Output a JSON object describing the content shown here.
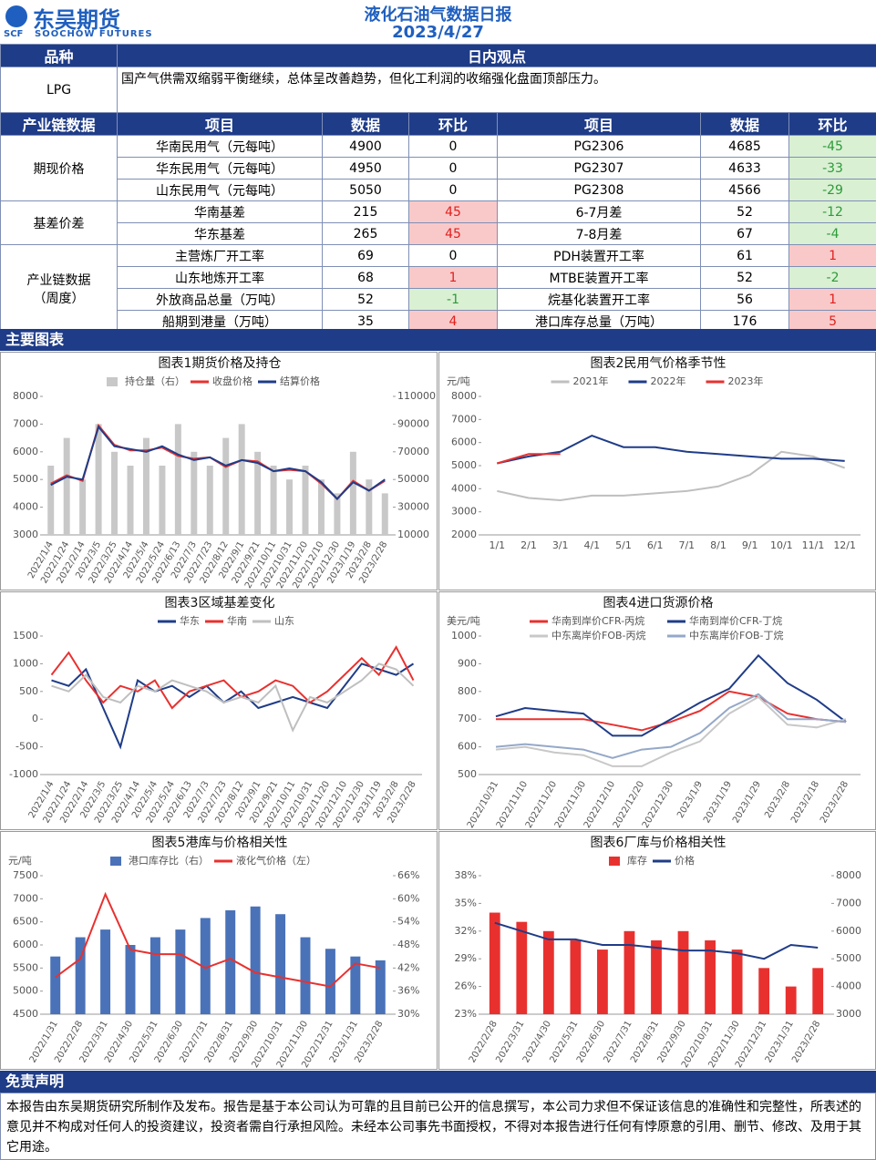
{
  "header": {
    "brand": "东吴期货",
    "brand_en": "SOOCHOW FUTURES",
    "mark": "SCF",
    "title": "液化石油气数据日报",
    "date": "2023/4/27"
  },
  "view": {
    "headers": [
      "品种",
      "日内观点"
    ],
    "product": "LPG",
    "text": "国产气供需双缩弱平衡继续，总体呈改善趋势，但化工利润的收缩强化盘面顶部压力。"
  },
  "table": {
    "headers": [
      "产业链数据",
      "项目",
      "数据",
      "环比",
      "项目",
      "数据",
      "环比"
    ],
    "groups": [
      {
        "name": [
          "期现价格"
        ],
        "rows": [
          [
            "华南民用气（元每吨）",
            4900,
            0,
            "PG2306",
            4685,
            -45
          ],
          [
            "华东民用气（元每吨）",
            4950,
            0,
            "PG2307",
            4633,
            -33
          ],
          [
            "山东民用气（元每吨）",
            5050,
            0,
            "PG2308",
            4566,
            -29
          ]
        ]
      },
      {
        "name": [
          "基差价差"
        ],
        "rows": [
          [
            "华南基差",
            215,
            45,
            "6-7月差",
            52,
            -12
          ],
          [
            "华东基差",
            265,
            45,
            "7-8月差",
            67,
            -4
          ]
        ]
      },
      {
        "name": [
          "产业链数据",
          "（周度）"
        ],
        "rows": [
          [
            "主营炼厂开工率",
            69,
            0,
            "PDH装置开工率",
            61,
            1
          ],
          [
            "山东地炼开工率",
            68,
            1,
            "MTBE装置开工率",
            52,
            -2
          ],
          [
            "外放商品总量（万吨）",
            52,
            -1,
            "烷基化装置开工率",
            56,
            1
          ],
          [
            "船期到港量（万吨）",
            35,
            4,
            "港口库存总量（万吨）",
            176,
            5
          ]
        ]
      }
    ]
  },
  "main_charts_title": "主要图表",
  "chart_data": [
    {
      "type": "combo",
      "title": "图表1期货价格及持仓",
      "categories": [
        "2022/1/4",
        "2022/1/24",
        "2022/2/14",
        "2022/3/5",
        "2022/3/25",
        "2022/4/14",
        "2022/5/4",
        "2022/5/24",
        "2022/6/13",
        "2022/7/3",
        "2022/7/23",
        "2022/8/12",
        "2022/9/1",
        "2022/9/21",
        "2022/10/11",
        "2022/10/31",
        "2022/11/20",
        "2022/12/10",
        "2022/12/30",
        "2023/1/19",
        "2023/2/8",
        "2023/2/28"
      ],
      "series": [
        {
          "name": "持仓量（右）",
          "type": "bar",
          "axis": "y2",
          "color": "#c8c8c8",
          "values": [
            60000,
            80000,
            50000,
            90000,
            70000,
            60000,
            80000,
            60000,
            90000,
            70000,
            60000,
            80000,
            90000,
            70000,
            60000,
            50000,
            60000,
            50000,
            40000,
            70000,
            50000,
            40000
          ]
        },
        {
          "name": "收盘价格",
          "type": "line",
          "color": "#e8312f",
          "values": [
            4850,
            5150,
            4950,
            6950,
            6250,
            6050,
            6050,
            6150,
            5850,
            5750,
            5800,
            5450,
            5700,
            5650,
            5300,
            5350,
            5300,
            4850,
            4300,
            4950,
            4600,
            4950
          ]
        },
        {
          "name": "结算价格",
          "type": "line",
          "color": "#1f3c88",
          "values": [
            4800,
            5100,
            5000,
            6900,
            6200,
            6100,
            6000,
            6200,
            5900,
            5700,
            5800,
            5500,
            5700,
            5600,
            5300,
            5400,
            5300,
            4900,
            4300,
            4900,
            4600,
            5000
          ]
        }
      ],
      "ylim": [
        3000,
        8000
      ],
      "yticks": [
        3000,
        4000,
        5000,
        6000,
        7000,
        8000
      ],
      "y2lim": [
        10000,
        110000
      ],
      "y2ticks": [
        10000,
        30000,
        50000,
        70000,
        90000,
        110000
      ]
    },
    {
      "type": "line",
      "title": "图表2民用气价格季节性",
      "unit": "元/吨",
      "categories": [
        "1/1",
        "2/1",
        "3/1",
        "4/1",
        "5/1",
        "6/1",
        "7/1",
        "8/1",
        "9/1",
        "10/1",
        "11/1",
        "12/1"
      ],
      "series": [
        {
          "name": "2021年",
          "type": "line",
          "color": "#bfbfbf",
          "values": [
            3900,
            3600,
            3500,
            3700,
            3700,
            3800,
            3900,
            4100,
            4600,
            5600,
            5400,
            4900
          ]
        },
        {
          "name": "2022年",
          "type": "line",
          "color": "#1f3c88",
          "values": [
            5100,
            5400,
            5600,
            6300,
            5800,
            5800,
            5600,
            5500,
            5400,
            5300,
            5300,
            5200
          ]
        },
        {
          "name": "2023年",
          "type": "line",
          "color": "#e8312f",
          "values": [
            5100,
            5500,
            5500,
            null,
            null,
            null,
            null,
            null,
            null,
            null,
            null,
            null
          ]
        }
      ],
      "ylim": [
        2000,
        8000
      ],
      "yticks": [
        2000,
        3000,
        4000,
        5000,
        6000,
        7000,
        8000
      ]
    },
    {
      "type": "line",
      "title": "图表3区域基差变化",
      "categories": [
        "2022/1/4",
        "2022/1/24",
        "2022/2/14",
        "2022/3/5",
        "2022/3/25",
        "2022/4/14",
        "2022/5/4",
        "2022/5/24",
        "2022/6/13",
        "2022/7/3",
        "2022/7/23",
        "2022/8/12",
        "2022/9/1",
        "2022/9/21",
        "2022/10/11",
        "2022/10/31",
        "2022/11/20",
        "2022/12/10",
        "2022/12/30",
        "2023/1/19",
        "2023/2/8",
        "2023/2/28"
      ],
      "series": [
        {
          "name": "华东",
          "type": "line",
          "color": "#1f3c88",
          "values": [
            700,
            600,
            900,
            200,
            -500,
            700,
            500,
            600,
            400,
            600,
            300,
            500,
            200,
            300,
            400,
            300,
            200,
            600,
            1000,
            900,
            800,
            1000
          ]
        },
        {
          "name": "华南",
          "type": "line",
          "color": "#e8312f",
          "values": [
            800,
            1200,
            700,
            300,
            600,
            500,
            700,
            200,
            500,
            600,
            700,
            400,
            500,
            700,
            600,
            300,
            500,
            800,
            1100,
            800,
            1300,
            700
          ]
        },
        {
          "name": "山东",
          "type": "line",
          "color": "#bfbfbf",
          "values": [
            600,
            500,
            800,
            400,
            300,
            600,
            500,
            700,
            600,
            500,
            300,
            400,
            300,
            600,
            -200,
            400,
            300,
            500,
            700,
            1000,
            900,
            600
          ]
        }
      ],
      "ylim": [
        -1000,
        1500
      ],
      "yticks": [
        -1000,
        -500,
        0,
        500,
        1000,
        1500
      ]
    },
    {
      "type": "line",
      "title": "图表4进口货源价格",
      "unit": "美元/吨",
      "categories": [
        "2022/10/31",
        "2022/11/10",
        "2022/11/20",
        "2022/11/30",
        "2022/12/10",
        "2022/12/20",
        "2022/12/30",
        "2023/1/9",
        "2023/1/19",
        "2023/1/29",
        "2023/2/8",
        "2023/2/18",
        "2023/2/28"
      ],
      "series": [
        {
          "name": "华南到岸价CFR-丙烷",
          "type": "line",
          "color": "#e8312f",
          "values": [
            700,
            700,
            700,
            700,
            680,
            660,
            690,
            730,
            800,
            780,
            720,
            700,
            690
          ]
        },
        {
          "name": "华南到岸价CFR-丁烷",
          "type": "line",
          "color": "#1f3c88",
          "values": [
            710,
            740,
            730,
            720,
            640,
            640,
            700,
            760,
            810,
            930,
            830,
            770,
            690
          ]
        },
        {
          "name": "中东离岸价FOB-丙烷",
          "type": "line",
          "color": "#c8c8c8",
          "values": [
            590,
            600,
            580,
            570,
            530,
            530,
            580,
            620,
            720,
            780,
            680,
            670,
            700
          ]
        },
        {
          "name": "中东离岸价FOB-丁烷",
          "type": "line",
          "color": "#95a8c8",
          "values": [
            600,
            610,
            600,
            590,
            560,
            590,
            600,
            650,
            740,
            790,
            700,
            700,
            690
          ]
        }
      ],
      "ylim": [
        500,
        1000
      ],
      "yticks": [
        500,
        600,
        700,
        800,
        900,
        1000
      ]
    },
    {
      "type": "combo",
      "title": "图表5港库与价格相关性",
      "unit": "元/吨",
      "categories": [
        "2022/1/31",
        "2022/2/28",
        "2022/3/31",
        "2022/4/30",
        "2022/5/31",
        "2022/6/30",
        "2022/7/31",
        "2022/8/31",
        "2022/9/30",
        "2022/10/31",
        "2022/11/30",
        "2022/12/31",
        "2023/1/31",
        "2023/2/28"
      ],
      "series": [
        {
          "name": "港口库存比（右）",
          "type": "bar",
          "axis": "y2",
          "color": "#4a72b8",
          "values": [
            45,
            50,
            52,
            48,
            50,
            52,
            55,
            57,
            58,
            56,
            50,
            47,
            45,
            44
          ]
        },
        {
          "name": "液化气价格（左）",
          "type": "line",
          "color": "#e8312f",
          "values": [
            5300,
            5700,
            7100,
            5900,
            5800,
            5800,
            5500,
            5700,
            5400,
            5300,
            5200,
            5100,
            5600,
            5500
          ]
        }
      ],
      "ylim": [
        4500,
        7500
      ],
      "yticks": [
        4500,
        5000,
        5500,
        6000,
        6500,
        7000,
        7500
      ],
      "y2lim": [
        30,
        66
      ],
      "y2ticks": [
        {
          "value": 30,
          "label": "30%"
        },
        {
          "value": 36,
          "label": "36%"
        },
        {
          "value": 42,
          "label": "42%"
        },
        {
          "value": 48,
          "label": "48%"
        },
        {
          "value": 54,
          "label": "54%"
        },
        {
          "value": 60,
          "label": "60%"
        },
        {
          "value": 66,
          "label": "66%"
        }
      ]
    },
    {
      "type": "combo",
      "title": "图表6厂库与价格相关性",
      "categories": [
        "2022/2/28",
        "2022/3/31",
        "2022/4/30",
        "2022/5/31",
        "2022/6/30",
        "2022/7/31",
        "2022/8/31",
        "2022/9/30",
        "2022/10/31",
        "2022/11/30",
        "2022/12/31",
        "2023/1/31",
        "2023/2/28"
      ],
      "series": [
        {
          "name": "库存",
          "type": "bar",
          "color": "#e8312f",
          "values": [
            34,
            33,
            32,
            31,
            30,
            32,
            31,
            32,
            31,
            30,
            28,
            26,
            28
          ]
        },
        {
          "name": "价格",
          "type": "line",
          "axis": "y2",
          "color": "#1f3c88",
          "values": [
            6300,
            6000,
            5700,
            5700,
            5500,
            5500,
            5400,
            5300,
            5300,
            5200,
            5000,
            5500,
            5400
          ]
        }
      ],
      "ylim": [
        23,
        38
      ],
      "yticks": [
        {
          "value": 23,
          "label": "23%"
        },
        {
          "value": 26,
          "label": "26%"
        },
        {
          "value": 29,
          "label": "29%"
        },
        {
          "value": 32,
          "label": "32%"
        },
        {
          "value": 35,
          "label": "35%"
        },
        {
          "value": 38,
          "label": "38%"
        }
      ],
      "y2lim": [
        3000,
        8000
      ],
      "y2ticks": [
        3000,
        4000,
        5000,
        6000,
        7000,
        8000
      ]
    }
  ],
  "disclaimer": {
    "title": "免责声明",
    "text": "本报告由东吴期货研究所制作及发布。报告是基于本公司认为可靠的且目前已公开的信息撰写，本公司力求但不保证该信息的准确性和完整性，所表述的意见并不构成对任何人的投资建议，投资者需自行承担风险。未经本公司事先书面授权，不得对本报告进行任何有悖原意的引用、删节、修改、及用于其它用途。"
  }
}
